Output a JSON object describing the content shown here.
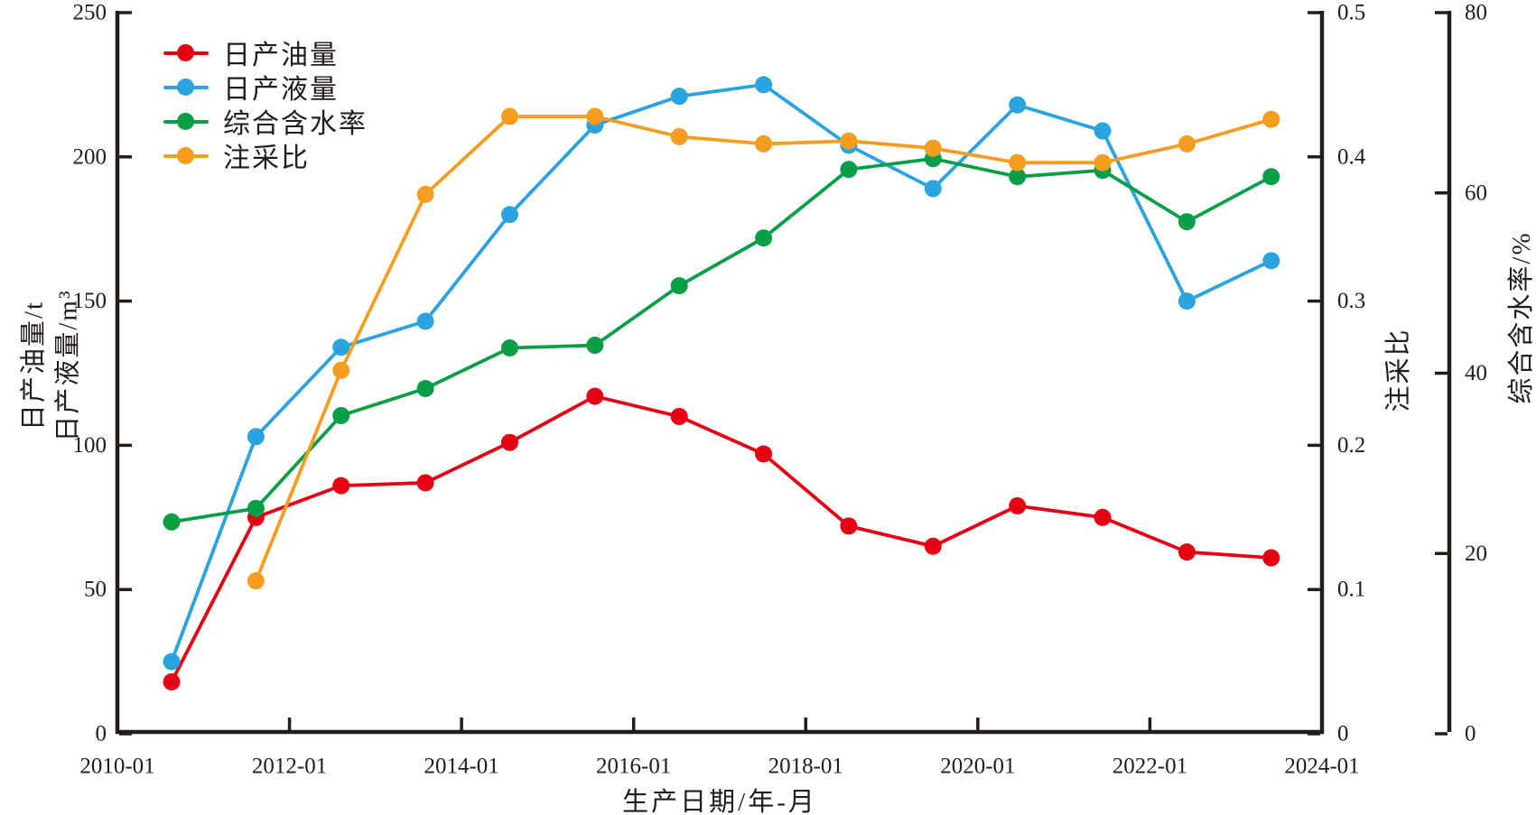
{
  "colors": {
    "axis": "#221d1a",
    "oil_red": "#e60013",
    "liquid_blue": "#2aa3df",
    "watercut_green": "#0a9e47",
    "ratio_orange": "#f59d1e",
    "background": "#ffffff"
  },
  "chart_data": {
    "type": "line",
    "title": "",
    "xlabel": "生产日期/年-月",
    "ylabel_left_line1": "日产油量/t",
    "ylabel_left_line2": "日产液量/m³",
    "ylabel_ratio": "注采比",
    "ylabel_pct": "综合含水率/%",
    "grid": false,
    "legend_position": "top-left",
    "x_axis": {
      "min_year": 2010,
      "max_year": 2024,
      "tick_step_years": 2,
      "tick_labels": [
        "2010-01",
        "2012-01",
        "2014-01",
        "2016-01",
        "2018-01",
        "2020-01",
        "2022-01",
        "2024-01"
      ]
    },
    "left_axis": {
      "min": 0,
      "max": 250,
      "step": 50,
      "tick_labels": [
        "0",
        "50",
        "100",
        "150",
        "200",
        "250"
      ]
    },
    "ratio_axis": {
      "min": 0,
      "max": 0.5,
      "step": 0.1,
      "tick_labels": [
        "0",
        "0.1",
        "0.2",
        "0.3",
        "0.4",
        "0.5"
      ]
    },
    "pct_axis": {
      "min": 0,
      "max": 80,
      "step": 20,
      "tick_labels": [
        "0",
        "20",
        "40",
        "60",
        "80"
      ]
    },
    "x_years": [
      2010.63,
      2011.61,
      2012.6,
      2013.58,
      2014.56,
      2015.55,
      2016.53,
      2017.51,
      2018.5,
      2019.48,
      2020.46,
      2021.45,
      2022.43,
      2023.41
    ],
    "series": [
      {
        "name": "日产油量",
        "axis": "left",
        "color": "#e60013",
        "values": [
          18,
          75,
          86,
          87,
          101,
          117,
          110,
          97,
          72,
          65,
          79,
          75,
          63,
          61
        ]
      },
      {
        "name": "日产液量",
        "axis": "left",
        "color": "#2aa3df",
        "values": [
          25,
          103,
          134,
          143,
          180,
          211,
          221,
          225,
          204,
          189,
          218,
          209,
          150,
          164
        ]
      },
      {
        "name": "综合含水率",
        "axis": "pct",
        "color": "#0a9e47",
        "values": [
          23.5,
          25.0,
          35.3,
          38.3,
          42.8,
          43.1,
          49.7,
          55.0,
          62.6,
          63.8,
          61.8,
          62.5,
          56.8,
          61.8
        ]
      },
      {
        "name": "注采比",
        "axis": "ratio",
        "color": "#f59d1e",
        "values": [
          null,
          0.106,
          0.252,
          0.374,
          0.428,
          0.428,
          0.414,
          0.409,
          0.411,
          0.406,
          0.396,
          0.396,
          0.409,
          0.426
        ]
      }
    ]
  }
}
